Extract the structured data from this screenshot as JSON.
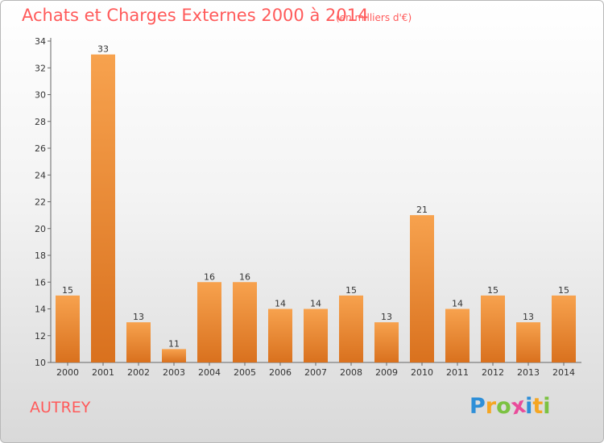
{
  "header": {
    "title": "Achats et Charges Externes 2000 à 2014",
    "unit": "(en milliers d'€)"
  },
  "place": "AUTREY",
  "logo": {
    "letters": [
      "P",
      "r",
      "o",
      "x",
      "i",
      "t",
      "i"
    ],
    "colors": [
      "#2e8fd8",
      "#f5a623",
      "#7cc242",
      "#e94b9a",
      "#2e8fd8",
      "#f5a623",
      "#7cc242"
    ]
  },
  "chart_data": {
    "type": "bar",
    "categories": [
      "2000",
      "2001",
      "2002",
      "2003",
      "2004",
      "2005",
      "2006",
      "2007",
      "2008",
      "2009",
      "2010",
      "2011",
      "2012",
      "2013",
      "2014"
    ],
    "values": [
      15,
      33,
      13,
      11,
      16,
      16,
      14,
      14,
      15,
      13,
      21,
      14,
      15,
      13,
      15
    ],
    "title": "Achats et Charges Externes 2000 à 2014",
    "xlabel": "",
    "ylabel": "",
    "ylim": [
      10,
      34
    ],
    "yticks": [
      10,
      12,
      14,
      16,
      18,
      20,
      22,
      24,
      26,
      28,
      30,
      32,
      34
    ],
    "grid": false,
    "bar_color": "#f0892e"
  }
}
